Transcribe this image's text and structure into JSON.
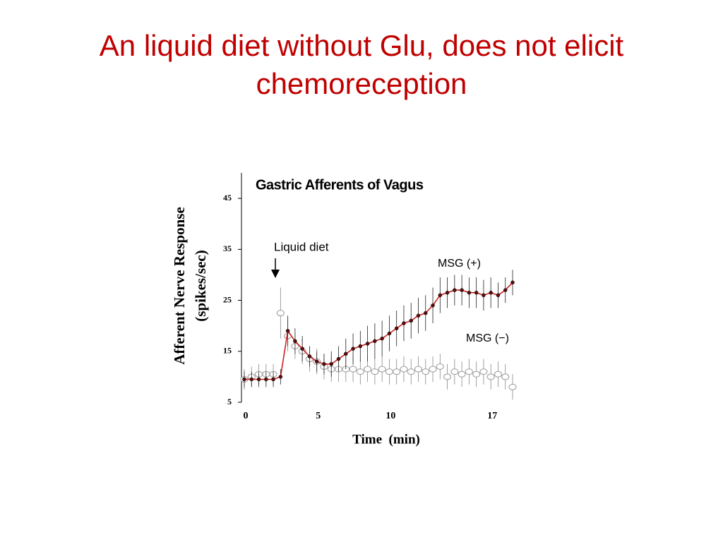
{
  "slide_title": "An liquid diet without Glu, does not elicit chemoreception",
  "chart_data": {
    "type": "line",
    "title": "Gastric Afferents of Vagus",
    "ylabel": [
      "Afferent Nerve Response",
      "(spikes/sec)"
    ],
    "xlabel": "Time  (min)",
    "annotations": [
      "Liquid diet",
      "MSG (+)",
      "MSG (−)"
    ],
    "x": [
      0,
      0.5,
      1,
      1.5,
      2,
      2.5,
      3,
      3.5,
      4,
      4.5,
      5,
      5.5,
      6,
      6.5,
      7,
      7.5,
      8,
      8.5,
      9,
      9.5,
      10,
      10.5,
      11,
      11.5,
      12,
      12.5,
      13,
      13.5,
      14,
      14.5,
      15,
      15.5,
      16,
      16.5,
      17,
      17.5,
      18,
      18.5
    ],
    "xlim": [
      0,
      18.5
    ],
    "xticks": [
      0,
      5,
      10,
      17
    ],
    "ylim": [
      5,
      50
    ],
    "yticks": [
      5,
      15,
      25,
      35,
      45
    ],
    "series": [
      {
        "name": "MSG (+)",
        "color": "#cc2020",
        "values": [
          9.5,
          9.5,
          9.5,
          9.5,
          9.5,
          10,
          19,
          17,
          15.5,
          14,
          13,
          12.5,
          12.5,
          13.5,
          14.5,
          15.5,
          16,
          16.5,
          17,
          17.5,
          18.5,
          19.5,
          20.5,
          21,
          22,
          22.5,
          24,
          26,
          26.5,
          27,
          27,
          26.5,
          26.5,
          26,
          26.5,
          26,
          27,
          28.5
        ],
        "errors": [
          1.5,
          1.5,
          1.5,
          1.5,
          1.5,
          1.5,
          3,
          2.5,
          2.5,
          2,
          2,
          2,
          2.5,
          2.5,
          3,
          3,
          3,
          3.5,
          3.5,
          3.5,
          3.5,
          3.5,
          3.5,
          3.5,
          3.5,
          3.5,
          3.5,
          3.5,
          3,
          3,
          3,
          3,
          3,
          3,
          3,
          2.5,
          2.5,
          2.5
        ]
      },
      {
        "name": "MSG (−)",
        "color": "#999999",
        "values": [
          9.5,
          10,
          10.5,
          10.5,
          10.5,
          22.5,
          18,
          16,
          15,
          13.5,
          13,
          12,
          11.5,
          11.5,
          11.5,
          11.5,
          11,
          11.5,
          11,
          11.5,
          11,
          11,
          11.5,
          11,
          11.5,
          11,
          11.5,
          12,
          10,
          11,
          10.5,
          11,
          10.5,
          11,
          10,
          10.5,
          10,
          8
        ],
        "errors": [
          2,
          2,
          2,
          2,
          2,
          5,
          3,
          2.5,
          2.5,
          2.5,
          2.5,
          2.5,
          2.5,
          2.5,
          2.5,
          2.5,
          2.5,
          2.5,
          2.5,
          2.5,
          2.5,
          2.5,
          2.5,
          2.5,
          2.5,
          2.5,
          2.5,
          2.5,
          2.5,
          2.5,
          2.5,
          2.5,
          2.5,
          2.5,
          2.5,
          2.5,
          2.5,
          2.5
        ]
      }
    ],
    "grid": false
  }
}
